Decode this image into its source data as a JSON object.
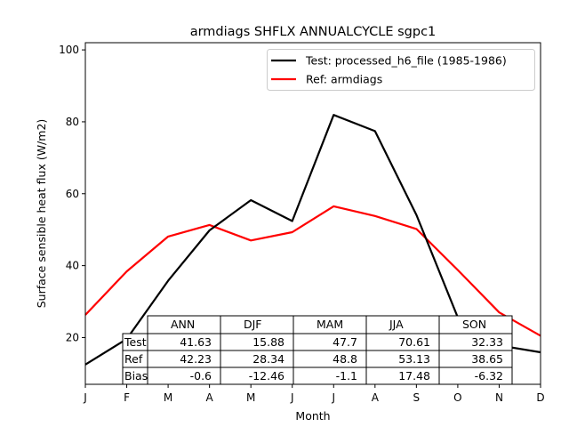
{
  "chart_data": {
    "type": "line",
    "title": "armdiags SHFLX ANNUALCYCLE sgpc1",
    "xlabel": "Month",
    "ylabel": "Surface sensible heat flux (W/m2)",
    "categories": [
      "J",
      "F",
      "M",
      "A",
      "M",
      "J",
      "J",
      "A",
      "S",
      "O",
      "N",
      "D"
    ],
    "xlim": [
      0,
      11
    ],
    "ylim": [
      7,
      102
    ],
    "yticks": [
      20,
      40,
      60,
      80,
      100
    ],
    "grid": false,
    "legend_position": "top-right",
    "series": [
      {
        "name": "Test: processed_h6_file (1985-1986)",
        "color": "#000000",
        "values": [
          12.5,
          19.6,
          35.8,
          49.8,
          58.2,
          52.4,
          81.9,
          77.4,
          54.1,
          25.6,
          17.8,
          15.9
        ]
      },
      {
        "name": "Ref: armdiags",
        "color": "#ff0000",
        "values": [
          26.3,
          38.4,
          48.1,
          51.3,
          47.0,
          49.3,
          56.5,
          53.8,
          50.2,
          38.8,
          27.0,
          20.5
        ]
      }
    ],
    "table": {
      "columns": [
        "ANN",
        "DJF",
        "MAM",
        "JJA",
        "SON"
      ],
      "rows": [
        {
          "label": "Test",
          "values": [
            "41.63",
            "15.88",
            "47.7",
            "70.61",
            "32.33"
          ]
        },
        {
          "label": "Ref",
          "values": [
            "42.23",
            "28.34",
            "48.8",
            "53.13",
            "38.65"
          ]
        },
        {
          "label": "Bias",
          "values": [
            "-0.6",
            "-12.46",
            "-1.1",
            "17.48",
            "-6.32"
          ]
        }
      ]
    }
  }
}
